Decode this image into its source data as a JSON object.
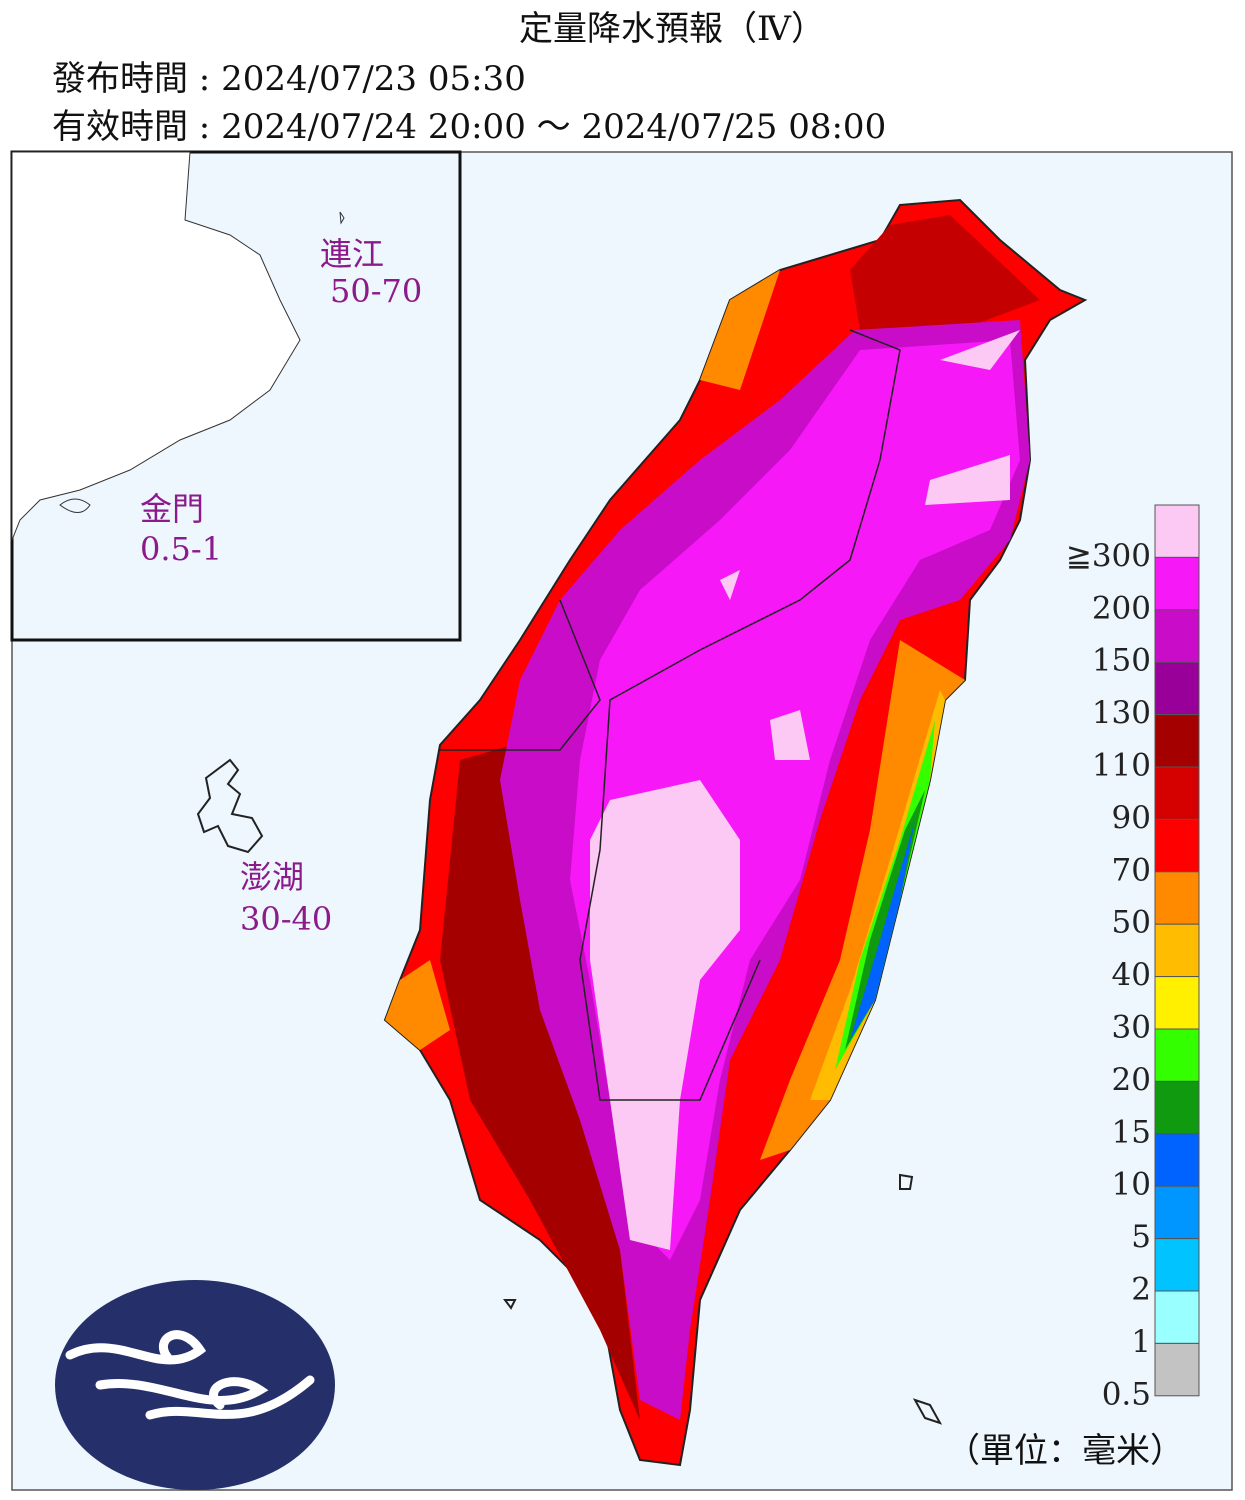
{
  "header": {
    "title": "定量降水預報（Ⅳ）",
    "issued": "發布時間 : 2024/07/23 05:30",
    "valid": "有效時間 : 2024/07/24 20:00 ～ 2024/07/25 08:00"
  },
  "islands": [
    {
      "name": "連江",
      "range": "50-70"
    },
    {
      "name": "金門",
      "range": "0.5-1"
    },
    {
      "name": "澎湖",
      "range": "30-40"
    }
  ],
  "legend": {
    "items": [
      {
        "label": "≧300",
        "color": "#fbc9f3"
      },
      {
        "label": "200",
        "color": "#f718f7"
      },
      {
        "label": "150",
        "color": "#c80cc8"
      },
      {
        "label": "130",
        "color": "#990099"
      },
      {
        "label": "110",
        "color": "#a50000"
      },
      {
        "label": "90",
        "color": "#d50000"
      },
      {
        "label": "70",
        "color": "#ff0000"
      },
      {
        "label": "50",
        "color": "#ff8a00"
      },
      {
        "label": "40",
        "color": "#ffbc00"
      },
      {
        "label": "30",
        "color": "#fff000"
      },
      {
        "label": "20",
        "color": "#33ff00"
      },
      {
        "label": "15",
        "color": "#0f9a0f"
      },
      {
        "label": "10",
        "color": "#0063ff"
      },
      {
        "label": "5",
        "color": "#0096ff"
      },
      {
        "label": "2",
        "color": "#00c3ff"
      },
      {
        "label": "1",
        "color": "#99ffff"
      },
      {
        "label": "0.5",
        "color": "#c3c3c3"
      }
    ],
    "unit": "（單位：毫米）"
  }
}
